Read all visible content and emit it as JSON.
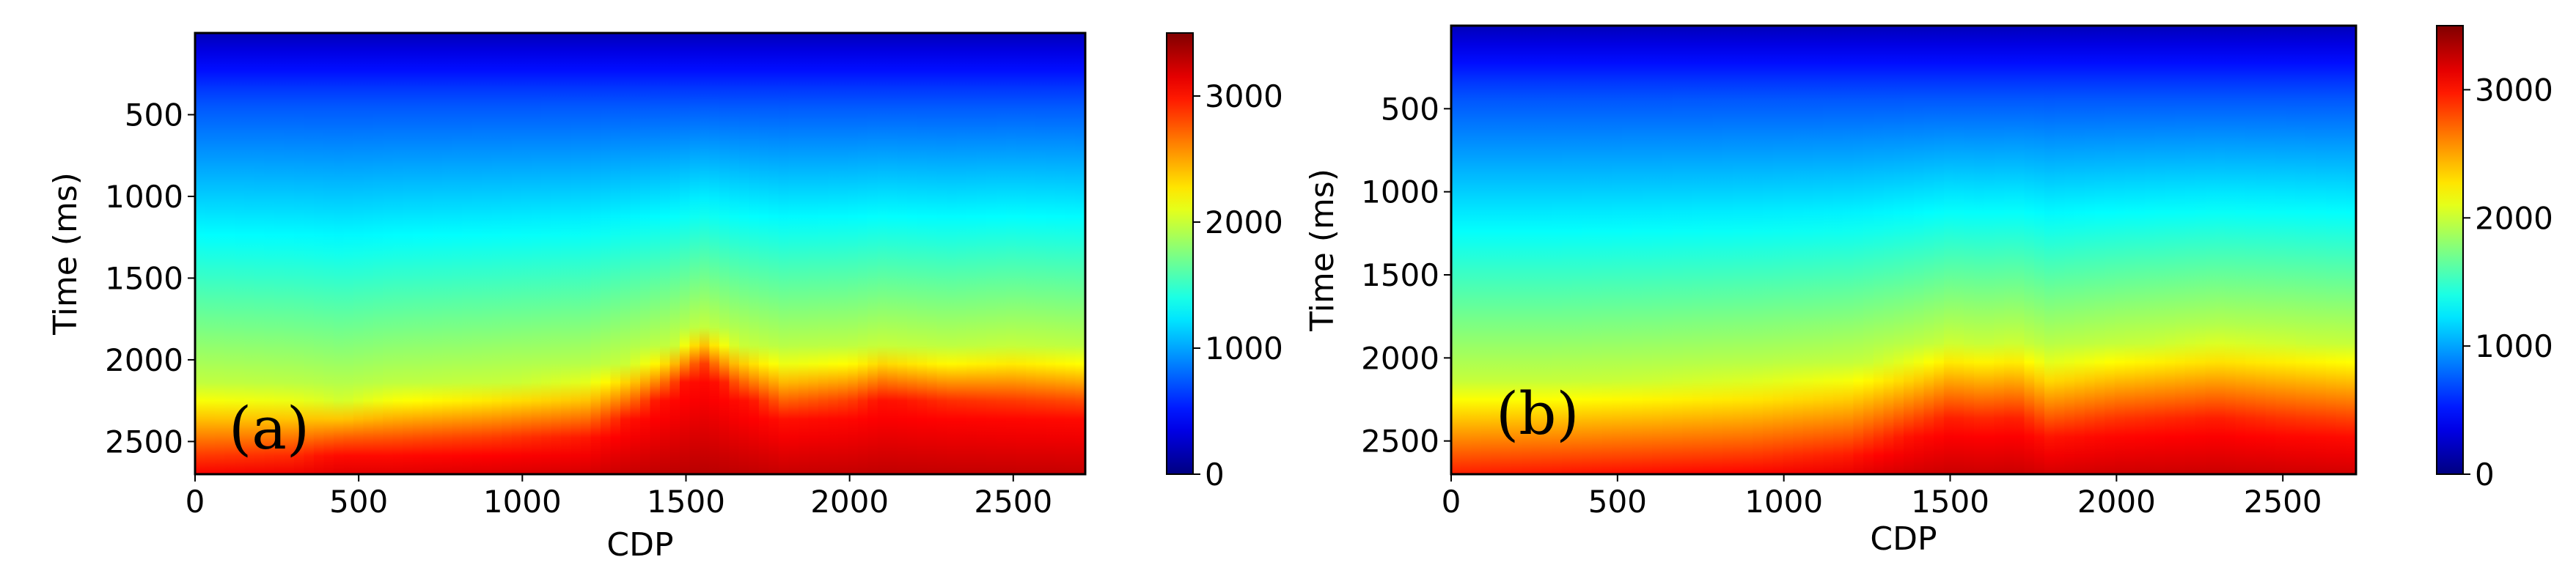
{
  "chart_data": [
    {
      "type": "heatmap",
      "panel_label": "(a)",
      "xlabel": "CDP",
      "ylabel": "Time (ms)",
      "xlim": [
        0,
        2720
      ],
      "ylim": [
        2700,
        0
      ],
      "xticks": [
        0,
        500,
        1000,
        1500,
        2000,
        2500
      ],
      "yticks": [
        500,
        1000,
        1500,
        2000,
        2500
      ],
      "colorbar": {
        "range": [
          0,
          3500
        ],
        "ticks": [
          0,
          1000,
          2000,
          3000
        ],
        "colormap": "jet"
      },
      "velocity_profile": {
        "cdp": [
          0,
          300,
          450,
          600,
          900,
          1200,
          1350,
          1450,
          1550,
          1650,
          1800,
          2000,
          2100,
          2300,
          2500,
          2720
        ],
        "t2000_ms": [
          2170,
          2200,
          2240,
          2190,
          2150,
          2100,
          2000,
          1930,
          1810,
          1900,
          1980,
          1960,
          1920,
          1960,
          1930,
          1960
        ],
        "t3000_ms": [
          2650,
          2620,
          2560,
          2560,
          2530,
          2480,
          2330,
          2200,
          2050,
          2200,
          2350,
          2300,
          2240,
          2280,
          2300,
          2320
        ]
      }
    },
    {
      "type": "heatmap",
      "panel_label": "(b)",
      "xlabel": "CDP",
      "ylabel": "Time (ms)",
      "xlim": [
        0,
        2720
      ],
      "ylim": [
        2700,
        0
      ],
      "xticks": [
        0,
        500,
        1000,
        1500,
        2000,
        2500
      ],
      "yticks": [
        500,
        1000,
        1500,
        2000,
        2500
      ],
      "colorbar": {
        "range": [
          0,
          3500
        ],
        "ticks": [
          0,
          1000,
          2000,
          3000
        ],
        "colormap": "jet"
      },
      "velocity_profile": {
        "cdp": [
          0,
          300,
          600,
          900,
          1200,
          1400,
          1500,
          1600,
          1700,
          1800,
          2000,
          2300,
          2500,
          2720
        ],
        "t2000_ms": [
          2150,
          2150,
          2130,
          2100,
          2050,
          1960,
          1900,
          1920,
          1900,
          1980,
          1930,
          1880,
          1900,
          1930
        ],
        "t3000_ms": [
          2720,
          2700,
          2680,
          2660,
          2600,
          2450,
          2380,
          2400,
          2380,
          2480,
          2420,
          2380,
          2420,
          2450
        ]
      }
    }
  ]
}
